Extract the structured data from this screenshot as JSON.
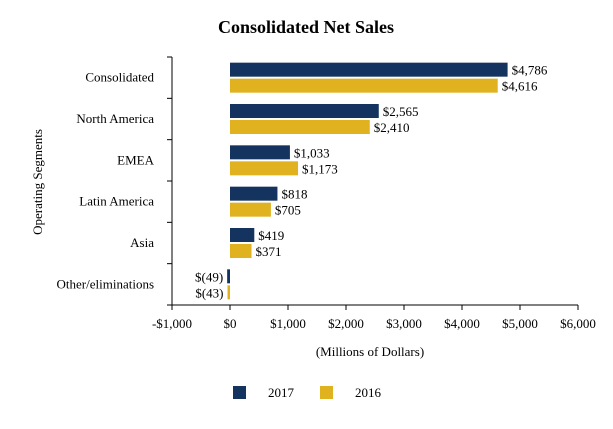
{
  "chart_data": {
    "type": "bar",
    "orientation": "horizontal",
    "title": "Consolidated Net Sales",
    "xlabel": "(Millions of Dollars)",
    "ylabel": "Operating Segments",
    "xlim": [
      -1000,
      6000
    ],
    "x_ticks": [
      -1000,
      0,
      1000,
      2000,
      3000,
      4000,
      5000,
      6000
    ],
    "x_tick_labels": [
      "-$1,000",
      "$0",
      "$1,000",
      "$2,000",
      "$3,000",
      "$4,000",
      "$5,000",
      "$6,000"
    ],
    "categories": [
      "Consolidated",
      "North America",
      "EMEA",
      "Latin America",
      "Asia",
      "Other/eliminations"
    ],
    "series": [
      {
        "name": "2017",
        "color": "#14335e",
        "values": [
          4786,
          2565,
          1033,
          818,
          419,
          -49
        ],
        "labels": [
          "$4,786",
          "$2,565",
          "$1,033",
          "$818",
          "$419",
          "$(49)"
        ]
      },
      {
        "name": "2016",
        "color": "#e0b21f",
        "values": [
          4616,
          2410,
          1173,
          705,
          371,
          -43
        ],
        "labels": [
          "$4,616",
          "$2,410",
          "$1,173",
          "$705",
          "$371",
          "$(43)"
        ]
      }
    ],
    "grid": false,
    "legend_position": "bottom"
  }
}
